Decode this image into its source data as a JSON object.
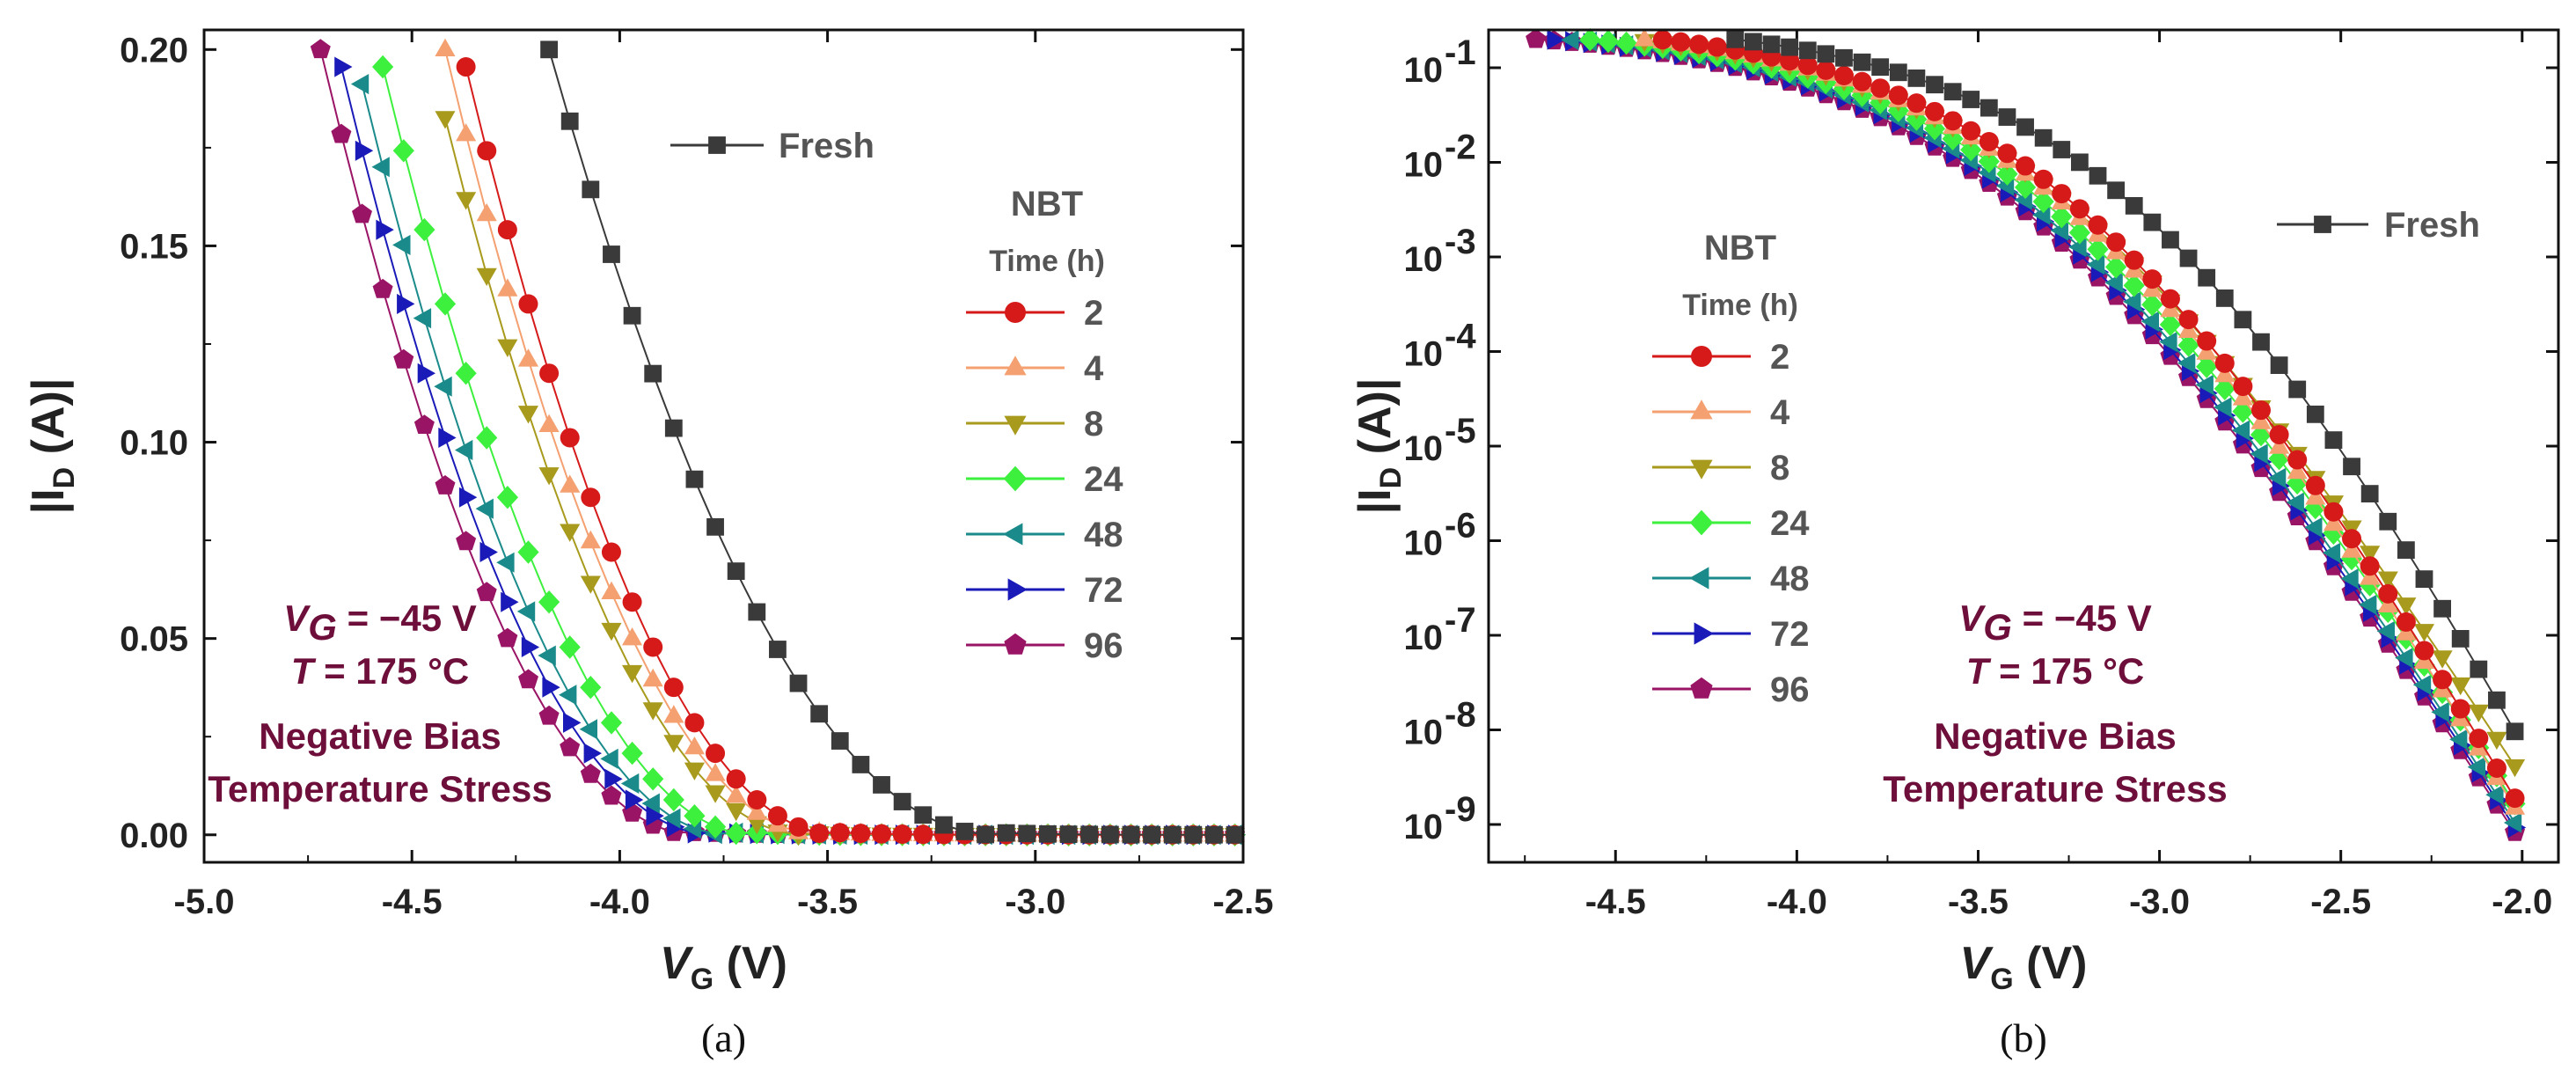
{
  "chart_data": [
    {
      "panel": "a",
      "type": "scatter",
      "caption": "(a)",
      "xlabel": "V",
      "xlabel_sub": "G",
      "xlabel_unit": " (V)",
      "ylabel": "|I",
      "ylabel_sub": "D",
      "ylabel_unit": " (A)|",
      "xlim": [
        -5.0,
        -2.5
      ],
      "ylim": [
        -0.007,
        0.205
      ],
      "xticks": [
        -5.0,
        -4.5,
        -4.0,
        -3.5,
        -3.0,
        -2.5
      ],
      "xtick_labels": [
        "-5.0",
        "-4.5",
        "-4.0",
        "-3.5",
        "-3.0",
        "-2.5"
      ],
      "yticks": [
        0.0,
        0.05,
        0.1,
        0.15,
        0.2
      ],
      "ytick_labels": [
        "0.00",
        "0.05",
        "0.10",
        "0.15",
        "0.20"
      ],
      "yscale": "linear",
      "legend_placement": "top-right",
      "fresh_label": "Fresh",
      "legend_title": "NBT",
      "legend_subtitle": "Time (h)",
      "annotation": {
        "line1_var": "V",
        "line1_sub": "G",
        "line1_rest": " = −45 V",
        "line2_var": "T",
        "line2_rest": " = 175 °C",
        "line3": "Negative Bias",
        "line4": "Temperature Stress"
      },
      "series": [
        {
          "name": "Fresh",
          "marker": "square",
          "color": "#3a3a3a",
          "line": "#3a3a3a",
          "vth": -3.1,
          "xmin": -4.17
        },
        {
          "name": "2",
          "marker": "circle",
          "color": "#d61a1a",
          "line": "#d61a1a",
          "vth": -3.48,
          "xmin": -4.38
        },
        {
          "name": "4",
          "marker": "triangle-up",
          "color": "#f4a070",
          "line": "#f4a070",
          "vth": -3.52,
          "xmin": -4.42
        },
        {
          "name": "8",
          "marker": "triangle-down",
          "color": "#a89a1c",
          "line": "#a89a1c",
          "vth": -3.56,
          "xmin": -4.46
        },
        {
          "name": "24",
          "marker": "diamond",
          "color": "#3ef03e",
          "line": "#3ef03e",
          "vth": -3.68,
          "xmin": -4.58
        },
        {
          "name": "48",
          "marker": "triangle-left",
          "color": "#1a8a8a",
          "line": "#1a8a8a",
          "vth": -3.74,
          "xmin": -4.64
        },
        {
          "name": "72",
          "marker": "triangle-right",
          "color": "#1a1ab8",
          "line": "#1a1ab8",
          "vth": -3.78,
          "xmin": -4.68
        },
        {
          "name": "96",
          "marker": "pentagon",
          "color": "#9a1466",
          "line": "#9a1466",
          "vth": -3.82,
          "xmin": -4.72
        }
      ]
    },
    {
      "panel": "b",
      "type": "scatter",
      "caption": "(b)",
      "xlabel": "V",
      "xlabel_sub": "G",
      "xlabel_unit": " (V)",
      "ylabel": "|I",
      "ylabel_sub": "D",
      "ylabel_unit": " (A)|",
      "xlim": [
        -4.85,
        -1.9
      ],
      "ylim_log10": [
        -9.4,
        -0.6
      ],
      "xticks": [
        -4.5,
        -4.0,
        -3.5,
        -3.0,
        -2.5,
        -2.0
      ],
      "xtick_labels": [
        "-4.5",
        "-4.0",
        "-3.5",
        "-3.0",
        "-2.5",
        "-2.0"
      ],
      "yticks_exp": [
        -9,
        -8,
        -7,
        -6,
        -5,
        -4,
        -3,
        -2,
        -1
      ],
      "ytick_labels": [
        "10",
        "10",
        "10",
        "10",
        "10",
        "10",
        "10",
        "10",
        "10"
      ],
      "ytick_exps": [
        "-9",
        "-8",
        "-7",
        "-6",
        "-5",
        "-4",
        "-3",
        "-2",
        "-1"
      ],
      "yscale": "log",
      "legend_placement": "left-center",
      "fresh_label": "Fresh",
      "legend_title": "NBT",
      "legend_subtitle": "Time (h)",
      "annotation": {
        "line1_var": "V",
        "line1_sub": "G",
        "line1_rest": " = −45 V",
        "line2_var": "T",
        "line2_rest": " = 175 °C",
        "line3": "Negative Bias",
        "line4": "Temperature Stress"
      },
      "series": [
        {
          "name": "Fresh",
          "marker": "square",
          "color": "#3a3a3a",
          "line": "#3a3a3a",
          "shift": 0.0,
          "xmin": -4.17,
          "endlog": -8.15
        },
        {
          "name": "2",
          "marker": "circle",
          "color": "#d61a1a",
          "line": "#d61a1a",
          "shift": 0.2,
          "xmin": -4.38,
          "endlog": -8.85
        },
        {
          "name": "4",
          "marker": "triangle-up",
          "color": "#f4a070",
          "line": "#f4a070",
          "shift": 0.24,
          "xmin": -4.42,
          "endlog": -8.95
        },
        {
          "name": "8",
          "marker": "triangle-down",
          "color": "#a89a1c",
          "line": "#a89a1c",
          "shift": 0.27,
          "xmin": -4.46,
          "endlog": -8.5
        },
        {
          "name": "24",
          "marker": "diamond",
          "color": "#3ef03e",
          "line": "#3ef03e",
          "shift": 0.31,
          "xmin": -4.58,
          "endlog": -8.9
        },
        {
          "name": "48",
          "marker": "triangle-left",
          "color": "#1a8a8a",
          "line": "#1a8a8a",
          "shift": 0.36,
          "xmin": -4.64,
          "endlog": -9.1
        },
        {
          "name": "72",
          "marker": "triangle-right",
          "color": "#1a1ab8",
          "line": "#1a1ab8",
          "shift": 0.39,
          "xmin": -4.68,
          "endlog": -9.15
        },
        {
          "name": "96",
          "marker": "pentagon",
          "color": "#9a1466",
          "line": "#9a1466",
          "shift": 0.41,
          "xmin": -4.72,
          "endlog": -9.2
        }
      ]
    }
  ]
}
